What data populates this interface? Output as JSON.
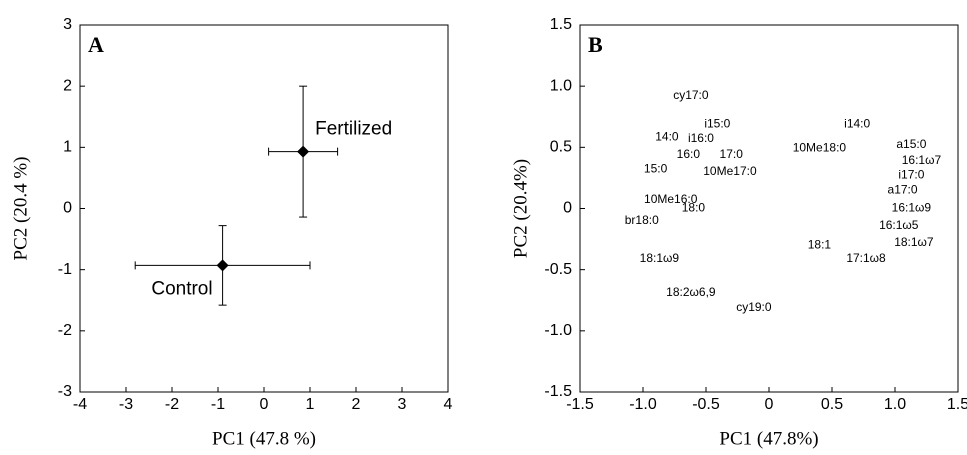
{
  "chart_data": [
    {
      "type": "errorbar",
      "panel_label": "A",
      "xlabel": "PC1 (47.8 %)",
      "ylabel": "PC2 (20.4 %)",
      "xlim": [
        -4,
        4
      ],
      "xticks": [
        -4,
        -3,
        -2,
        -1,
        0,
        1,
        2,
        3,
        4
      ],
      "ylim": [
        -3,
        3
      ],
      "yticks": [
        -3,
        -2,
        -1,
        0,
        1,
        2,
        3
      ],
      "color": "#000000",
      "series": [
        {
          "name": "Fertilized",
          "x": 0.85,
          "y": 0.93,
          "xerr": 0.75,
          "yerr": 1.07
        },
        {
          "name": "Control",
          "x": -0.9,
          "y": -0.93,
          "xerr": 1.9,
          "yerr": 0.65
        }
      ]
    },
    {
      "type": "text_scatter",
      "panel_label": "B",
      "xlabel": "PC1 (47.8%)",
      "ylabel": "PC2 (20.4%)",
      "xlim": [
        -1.5,
        1.5
      ],
      "xticks": [
        -1.5,
        {
          "value": -1,
          "label": "-1.0"
        },
        -0.5,
        0,
        0.5,
        {
          "value": 1,
          "label": "1.0"
        },
        1.5
      ],
      "ylim": [
        -1.5,
        1.5
      ],
      "yticks": [
        -1.5,
        {
          "value": -1,
          "label": "-1.0"
        },
        -0.5,
        0,
        0.5,
        {
          "value": 1,
          "label": "1.0"
        },
        1.5
      ],
      "labels": [
        "cy17:0",
        "i15:0",
        "i14:0",
        "14:0",
        "i16:0",
        "a15:0",
        "10Me18:0",
        "16:0",
        "17:0",
        "16:1ω7",
        "15:0",
        "10Me17:0",
        "i17:0",
        "a17:0",
        "10Me16:0",
        "18:0",
        "16:1ω9",
        "br18:0",
        "16:1ω5",
        "18:1",
        "18:1ω7",
        "17:1ω8",
        "18:1ω9",
        "18:2ω6,9",
        "cy19:0"
      ],
      "x": [
        -0.62,
        -0.41,
        0.7,
        -0.81,
        -0.54,
        1.13,
        0.4,
        -0.64,
        -0.3,
        1.21,
        -0.9,
        -0.31,
        1.13,
        1.06,
        -0.78,
        -0.6,
        1.13,
        -1.01,
        1.03,
        0.4,
        1.15,
        0.77,
        -0.87,
        -0.62,
        -0.12
      ],
      "y": [
        0.92,
        0.69,
        0.69,
        0.58,
        0.57,
        0.52,
        0.49,
        0.44,
        0.44,
        0.39,
        0.32,
        0.3,
        0.27,
        0.15,
        0.07,
        0.0,
        0.0,
        -0.1,
        -0.14,
        -0.3,
        -0.28,
        -0.41,
        -0.41,
        -0.69,
        -0.81
      ]
    }
  ]
}
